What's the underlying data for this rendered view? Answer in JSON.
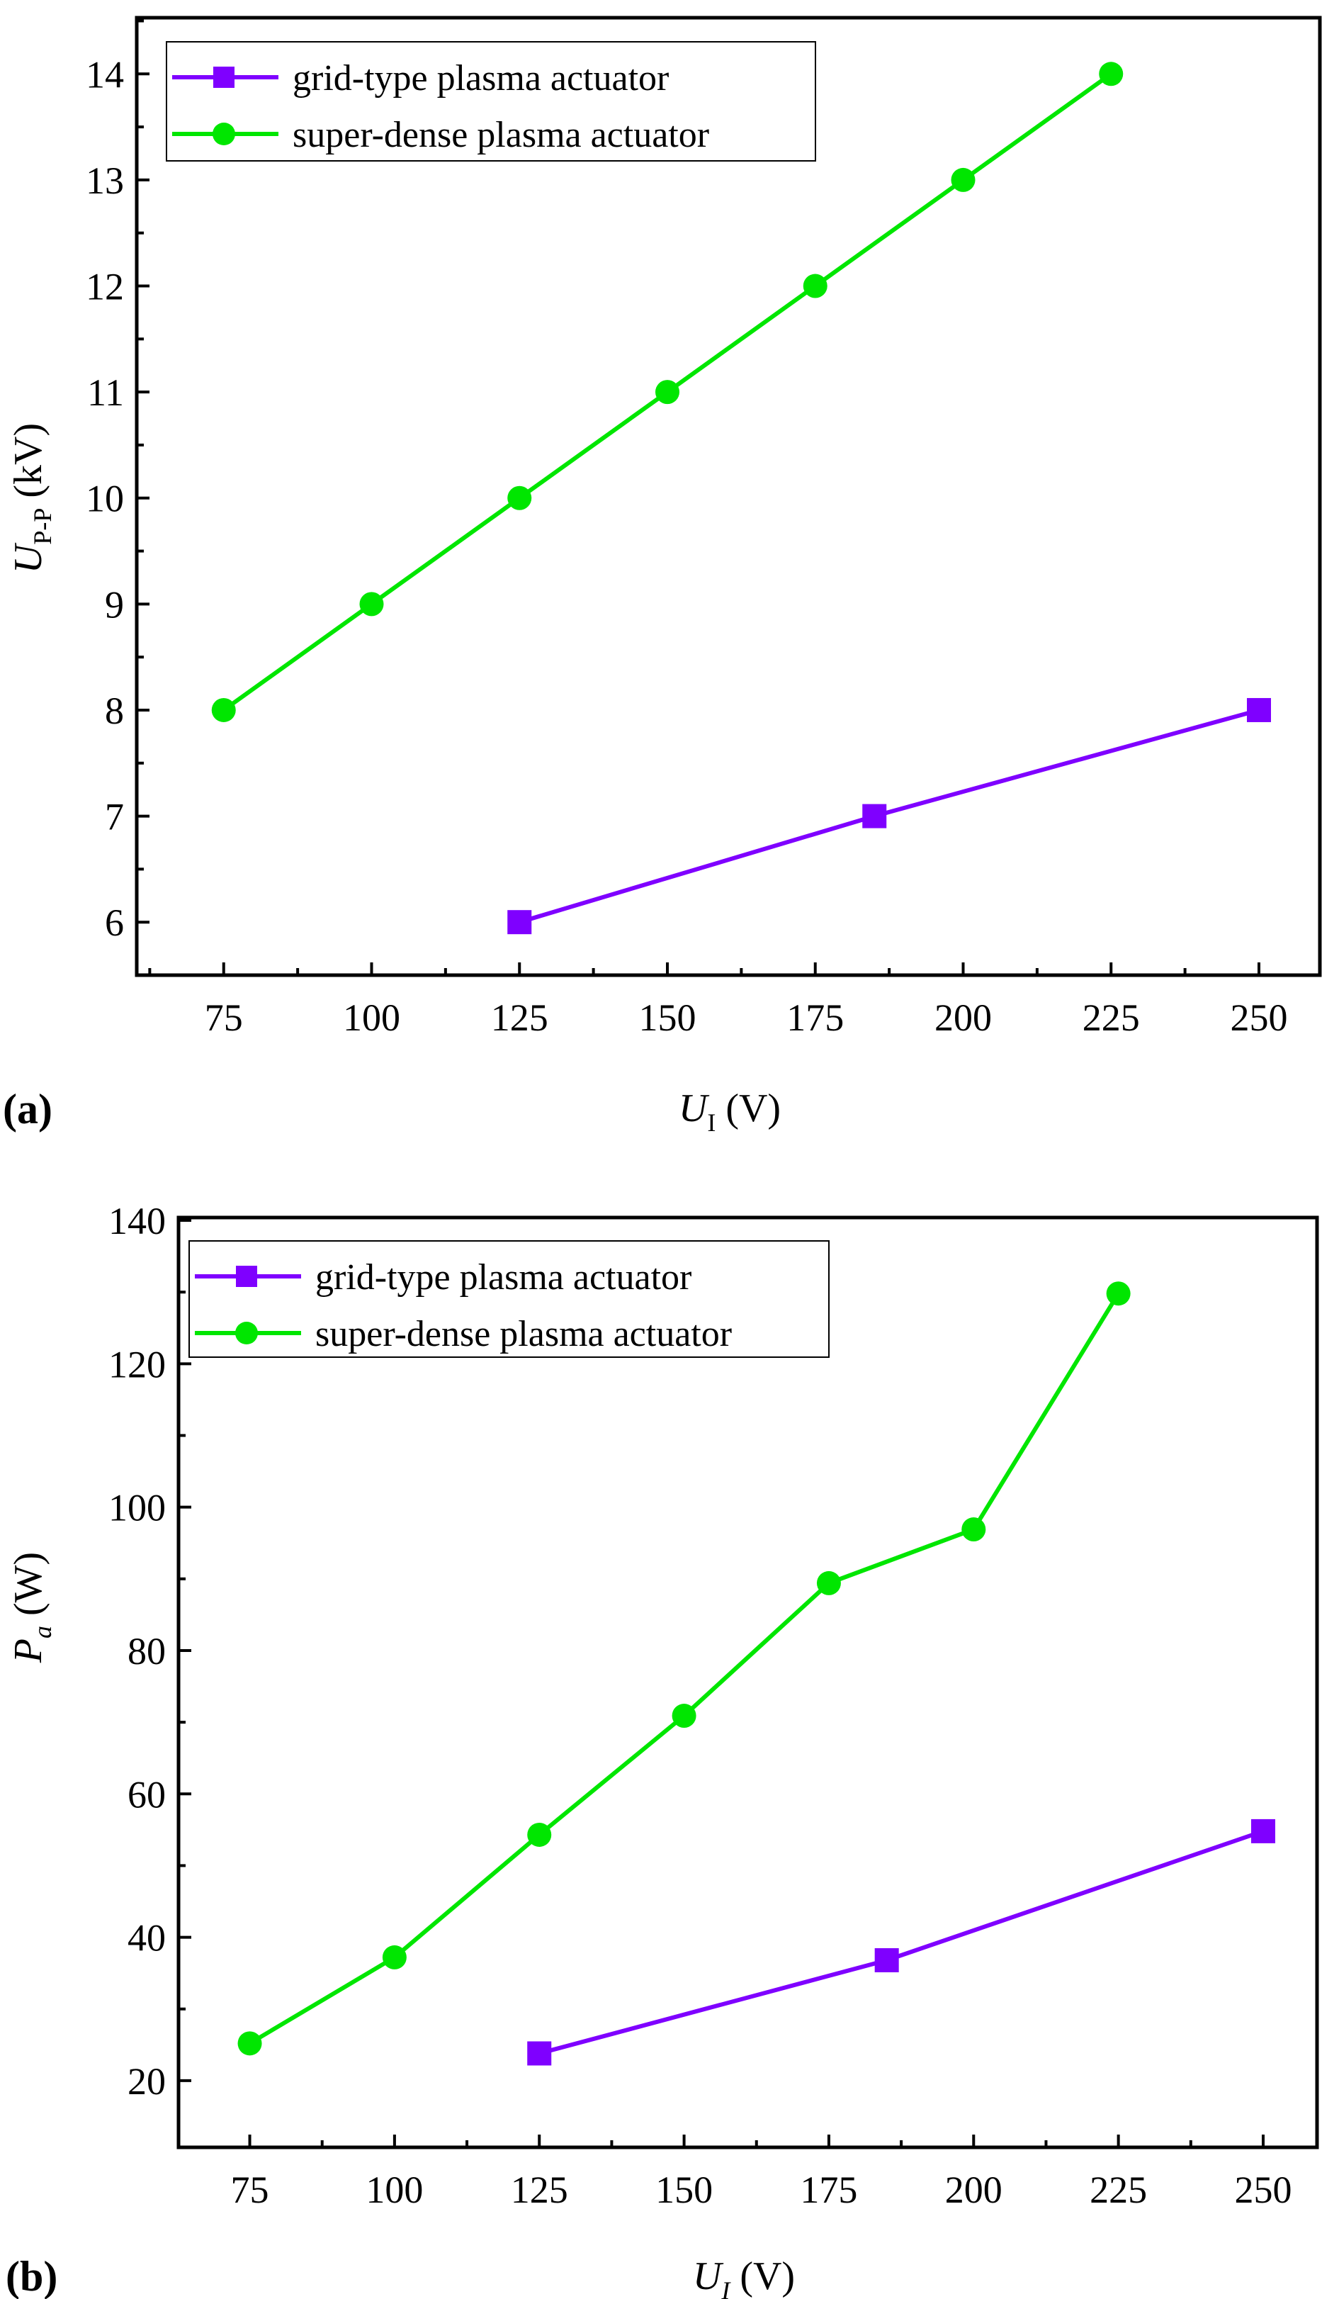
{
  "chart_data": [
    {
      "type": "line",
      "panel_label": "(a)",
      "xlabel": {
        "main": "U",
        "sub": "I",
        "unit": " (V)"
      },
      "ylabel": {
        "main": "U",
        "sub": "P-P",
        "unit": " (kV)"
      },
      "xlim": [
        60.3,
        260.3
      ],
      "ylim": [
        5.5,
        14.53
      ],
      "xticks": [
        75,
        100,
        125,
        150,
        175,
        200,
        225,
        250
      ],
      "yticks": [
        6,
        7,
        8,
        9,
        10,
        11,
        12,
        13,
        14
      ],
      "xminor": 12.5,
      "yminor": 0.5,
      "legend_position": "top-left",
      "series": [
        {
          "name": "grid-type plasma actuator",
          "color": "#7f00ff",
          "marker": "square",
          "x": [
            125,
            185,
            250
          ],
          "y": [
            6,
            7,
            8
          ]
        },
        {
          "name": "super-dense plasma actuator",
          "color": "#00e600",
          "marker": "circle",
          "x": [
            75,
            100,
            125,
            150,
            175,
            200,
            225
          ],
          "y": [
            8,
            9,
            10,
            11,
            12,
            13,
            14
          ]
        }
      ]
    },
    {
      "type": "line",
      "panel_label": "(b)",
      "xlabel": {
        "main": "U",
        "sub": "I",
        "unit": " (V)"
      },
      "ylabel": {
        "main": "P",
        "sub": "a",
        "unit": " (W)"
      },
      "xlim": [
        62.7,
        259.3
      ],
      "ylim": [
        10.7,
        140.4
      ],
      "xticks": [
        75,
        100,
        125,
        150,
        175,
        200,
        225,
        250
      ],
      "yticks": [
        20,
        40,
        60,
        80,
        100,
        120,
        140
      ],
      "xminor": 12.5,
      "yminor": 10,
      "legend_position": "top-left",
      "series": [
        {
          "name": "grid-type plasma actuator",
          "color": "#7f00ff",
          "marker": "square",
          "x": [
            125,
            185,
            250
          ],
          "y": [
            23.8,
            36.8,
            54.8
          ]
        },
        {
          "name": "super-dense plasma actuator",
          "color": "#00e600",
          "marker": "circle",
          "x": [
            75,
            100,
            125,
            150,
            175,
            200,
            225
          ],
          "y": [
            25.2,
            37.2,
            54.3,
            70.9,
            89.4,
            96.9,
            129.8
          ]
        }
      ]
    }
  ]
}
